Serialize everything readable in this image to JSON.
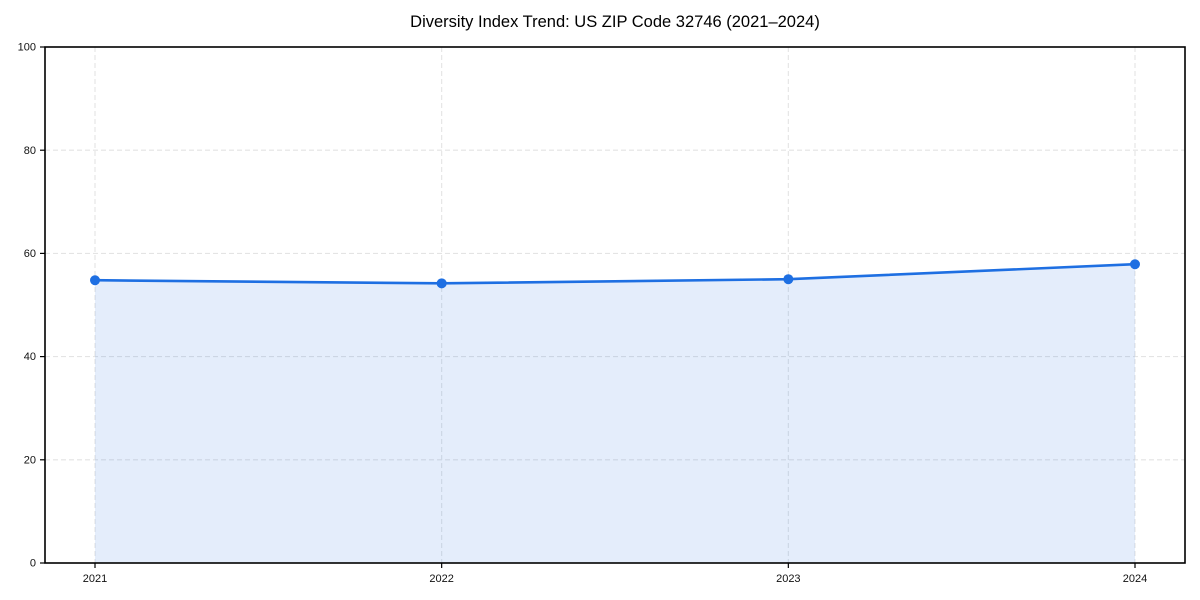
{
  "chart_data": {
    "type": "area",
    "title": "Diversity Index Trend: US ZIP Code 32746 (2021–2024)",
    "series_name": "Diversity Index",
    "categories": [
      "2021",
      "2022",
      "2023",
      "2024"
    ],
    "values": [
      54.8,
      54.2,
      55.0,
      57.9
    ],
    "xlabel": "",
    "ylabel": "",
    "ylim": [
      0,
      100
    ],
    "yticks": [
      0,
      20,
      40,
      60,
      80,
      100
    ],
    "grid": {
      "visible": true,
      "style": "dashed",
      "color": "#e4e4e4"
    },
    "legend": "none",
    "marker": "circle",
    "colors": {
      "line": "#1e6fe2",
      "marker": "#1e6fe2",
      "fill": "#1e6fe2",
      "fill_opacity": 0.12,
      "axis": "#000000",
      "text": "#111111",
      "background": "#ffffff"
    }
  }
}
